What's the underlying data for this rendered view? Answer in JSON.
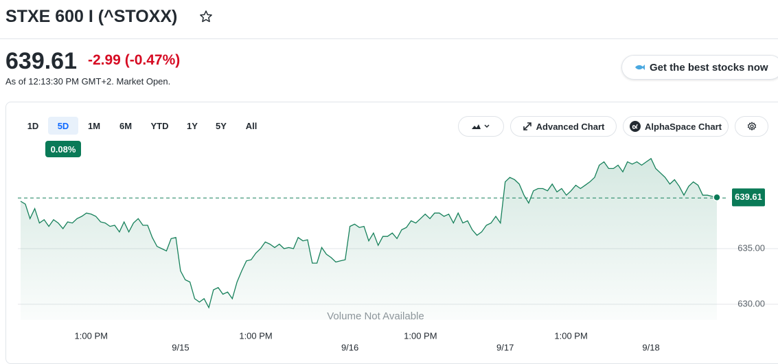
{
  "header": {
    "title": "STXE 600 I (^STOXX)",
    "price": 639.61,
    "change": "-2.99",
    "change_percent": "(-0.47%)",
    "as_of": "As of 12:13:30 PM GMT+2. Market Open.",
    "promo_button": "Get the best stocks now"
  },
  "toolbar": {
    "ranges": [
      "1D",
      "5D",
      "1M",
      "6M",
      "YTD",
      "1Y",
      "5Y",
      "All"
    ],
    "selected_range_index": 1,
    "range_change": "0.08%",
    "buttons": [
      "Advanced Chart",
      "AlphaSpace Chart"
    ]
  },
  "chart_data": {
    "type": "line",
    "color": "#16805a",
    "values": [
      639.26,
      639.0,
      637.7,
      638.6,
      637.3,
      637.6,
      637.0,
      637.6,
      637.3,
      636.8,
      637.4,
      637.3,
      637.7,
      637.9,
      638.2,
      638.1,
      637.9,
      637.4,
      637.3,
      637.0,
      637.1,
      636.5,
      637.4,
      636.5,
      637.3,
      637.7,
      637.1,
      637.1,
      636.0,
      635.2,
      635.0,
      634.8,
      635.9,
      636.0,
      633.0,
      632.2,
      632.0,
      630.5,
      630.2,
      630.5,
      629.7,
      631.3,
      631.5,
      630.9,
      631.1,
      630.5,
      632.0,
      633.0,
      633.9,
      634.0,
      634.6,
      635.0,
      635.6,
      635.4,
      635.1,
      635.4,
      635.0,
      635.1,
      635.0,
      636.0,
      635.7,
      635.8,
      633.7,
      633.7,
      635.1,
      634.5,
      634.2,
      633.8,
      633.9,
      634.0,
      637.0,
      637.2,
      636.9,
      637.0,
      635.7,
      636.4,
      635.3,
      636.1,
      636.1,
      636.4,
      635.9,
      636.7,
      636.9,
      637.5,
      637.3,
      637.7,
      638.1,
      637.7,
      638.2,
      638.2,
      637.9,
      638.1,
      637.3,
      638.2,
      637.3,
      637.5,
      636.7,
      636.2,
      636.5,
      637.1,
      637.3,
      637.9,
      637.3,
      641.0,
      641.4,
      641.2,
      640.8,
      639.8,
      639.1,
      640.2,
      640.4,
      640.4,
      640.2,
      640.8,
      640.1,
      640.4,
      639.8,
      640.2,
      640.7,
      640.4,
      640.7,
      641.0,
      641.4,
      642.5,
      642.8,
      642.2,
      642.2,
      642.5,
      641.9,
      642.8,
      642.6,
      642.8,
      642.5,
      642.8,
      643.1,
      642.2,
      641.8,
      641.4,
      640.8,
      641.2,
      640.6,
      639.8,
      640.6,
      641.0,
      640.7,
      639.8,
      639.8,
      639.7,
      639.61
    ],
    "ylim": [
      628.6,
      645
    ],
    "yticks": [
      {
        "value": 635,
        "label": "635.00"
      },
      {
        "value": 630,
        "label": "630.00"
      }
    ],
    "grid": true,
    "reference_line": 639.55,
    "xticks": [
      {
        "value": 15,
        "label": "1:00 PM"
      },
      {
        "value": 50,
        "label": "1:00 PM"
      },
      {
        "value": 85,
        "label": "1:00 PM"
      },
      {
        "value": 117,
        "label": "1:00 PM"
      }
    ],
    "date_ticks": [
      {
        "value": 34,
        "label": "9/15"
      },
      {
        "value": 70,
        "label": "9/16"
      },
      {
        "value": 103,
        "label": "9/17"
      },
      {
        "value": 134,
        "label": "9/18"
      }
    ],
    "annotation": "Volume Not Available"
  }
}
